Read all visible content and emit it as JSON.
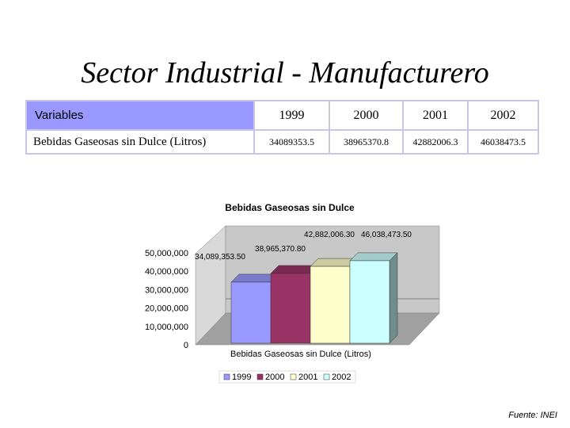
{
  "slide": {
    "title": "Sector Industrial - Manufacturero",
    "source": "Fuente: INEI"
  },
  "table": {
    "header_label": "Variables",
    "years": [
      "1999",
      "2000",
      "2001",
      "2002"
    ],
    "row_label": "Bebidas Gaseosas sin Dulce (Litros)",
    "values": [
      "34089353.5",
      "38965370.8",
      "42882006.3",
      "46038473.5"
    ]
  },
  "chart_data": {
    "type": "bar",
    "title": "Bebidas Gaseosas sin Dulce",
    "xlabel": "Bebidas Gaseosas sin Dulce (Litros)",
    "ylabel": "",
    "categories": [
      "Bebidas Gaseosas sin Dulce (Litros)"
    ],
    "series": [
      {
        "name": "1999",
        "values": [
          34089353.5
        ],
        "label": "34,089,353.50",
        "color": "#9999ff"
      },
      {
        "name": "2000",
        "values": [
          38965370.8
        ],
        "label": "38,965,370.80",
        "color": "#993366"
      },
      {
        "name": "2001",
        "values": [
          42882006.3
        ],
        "label": "42,882,006.30",
        "color": "#ffffcc"
      },
      {
        "name": "2002",
        "values": [
          46038473.5
        ],
        "label": "46,038,473.50",
        "color": "#ccffff"
      }
    ],
    "yticks": [
      "0",
      "10,000,000",
      "20,000,000",
      "30,000,000",
      "40,000,000",
      "50,000,000"
    ],
    "ylim": [
      0,
      50000000
    ],
    "grid": true,
    "legend": "bottom",
    "projection": "3d"
  }
}
